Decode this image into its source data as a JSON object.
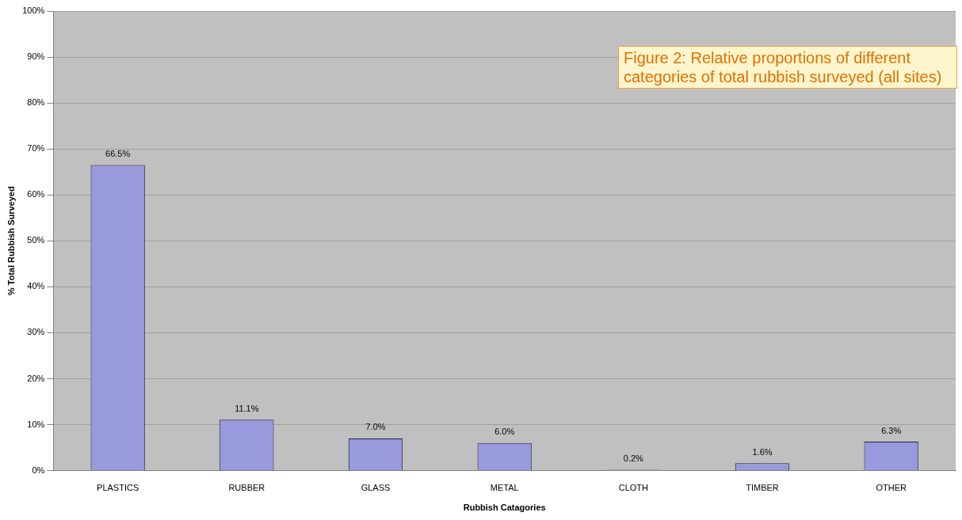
{
  "chart_data": {
    "type": "bar",
    "xlabel": "Rubbish Catagories",
    "ylabel": "% Total Rubbish Surveyed",
    "categories": [
      "PLASTICS",
      "RUBBER",
      "GLASS",
      "METAL",
      "CLOTH",
      "TIMBER",
      "OTHER"
    ],
    "values": [
      66.5,
      11.1,
      7.0,
      6.0,
      0.2,
      1.6,
      6.3
    ],
    "value_labels": [
      "66.5%",
      "11.1%",
      "7.0%",
      "6.0%",
      "0.2%",
      "1.6%",
      "6.3%"
    ],
    "color": "#9999dd",
    "ylim": [
      0,
      100
    ],
    "yticks": [
      {
        "value": 0,
        "label": "0%"
      },
      {
        "value": 10,
        "label": "10%"
      },
      {
        "value": 20,
        "label": "20%"
      },
      {
        "value": 30,
        "label": "30%"
      },
      {
        "value": 40,
        "label": "40%"
      },
      {
        "value": 50,
        "label": "50%"
      },
      {
        "value": 60,
        "label": "60%"
      },
      {
        "value": 70,
        "label": "70%"
      },
      {
        "value": 80,
        "label": "80%"
      },
      {
        "value": 90,
        "label": "90%"
      },
      {
        "value": 100,
        "label": "100%"
      }
    ],
    "grid": "y",
    "legend": false,
    "annotations": [
      "Figure 2: Relative proportions of different categories of total rubbish surveyed (all sites)"
    ]
  }
}
